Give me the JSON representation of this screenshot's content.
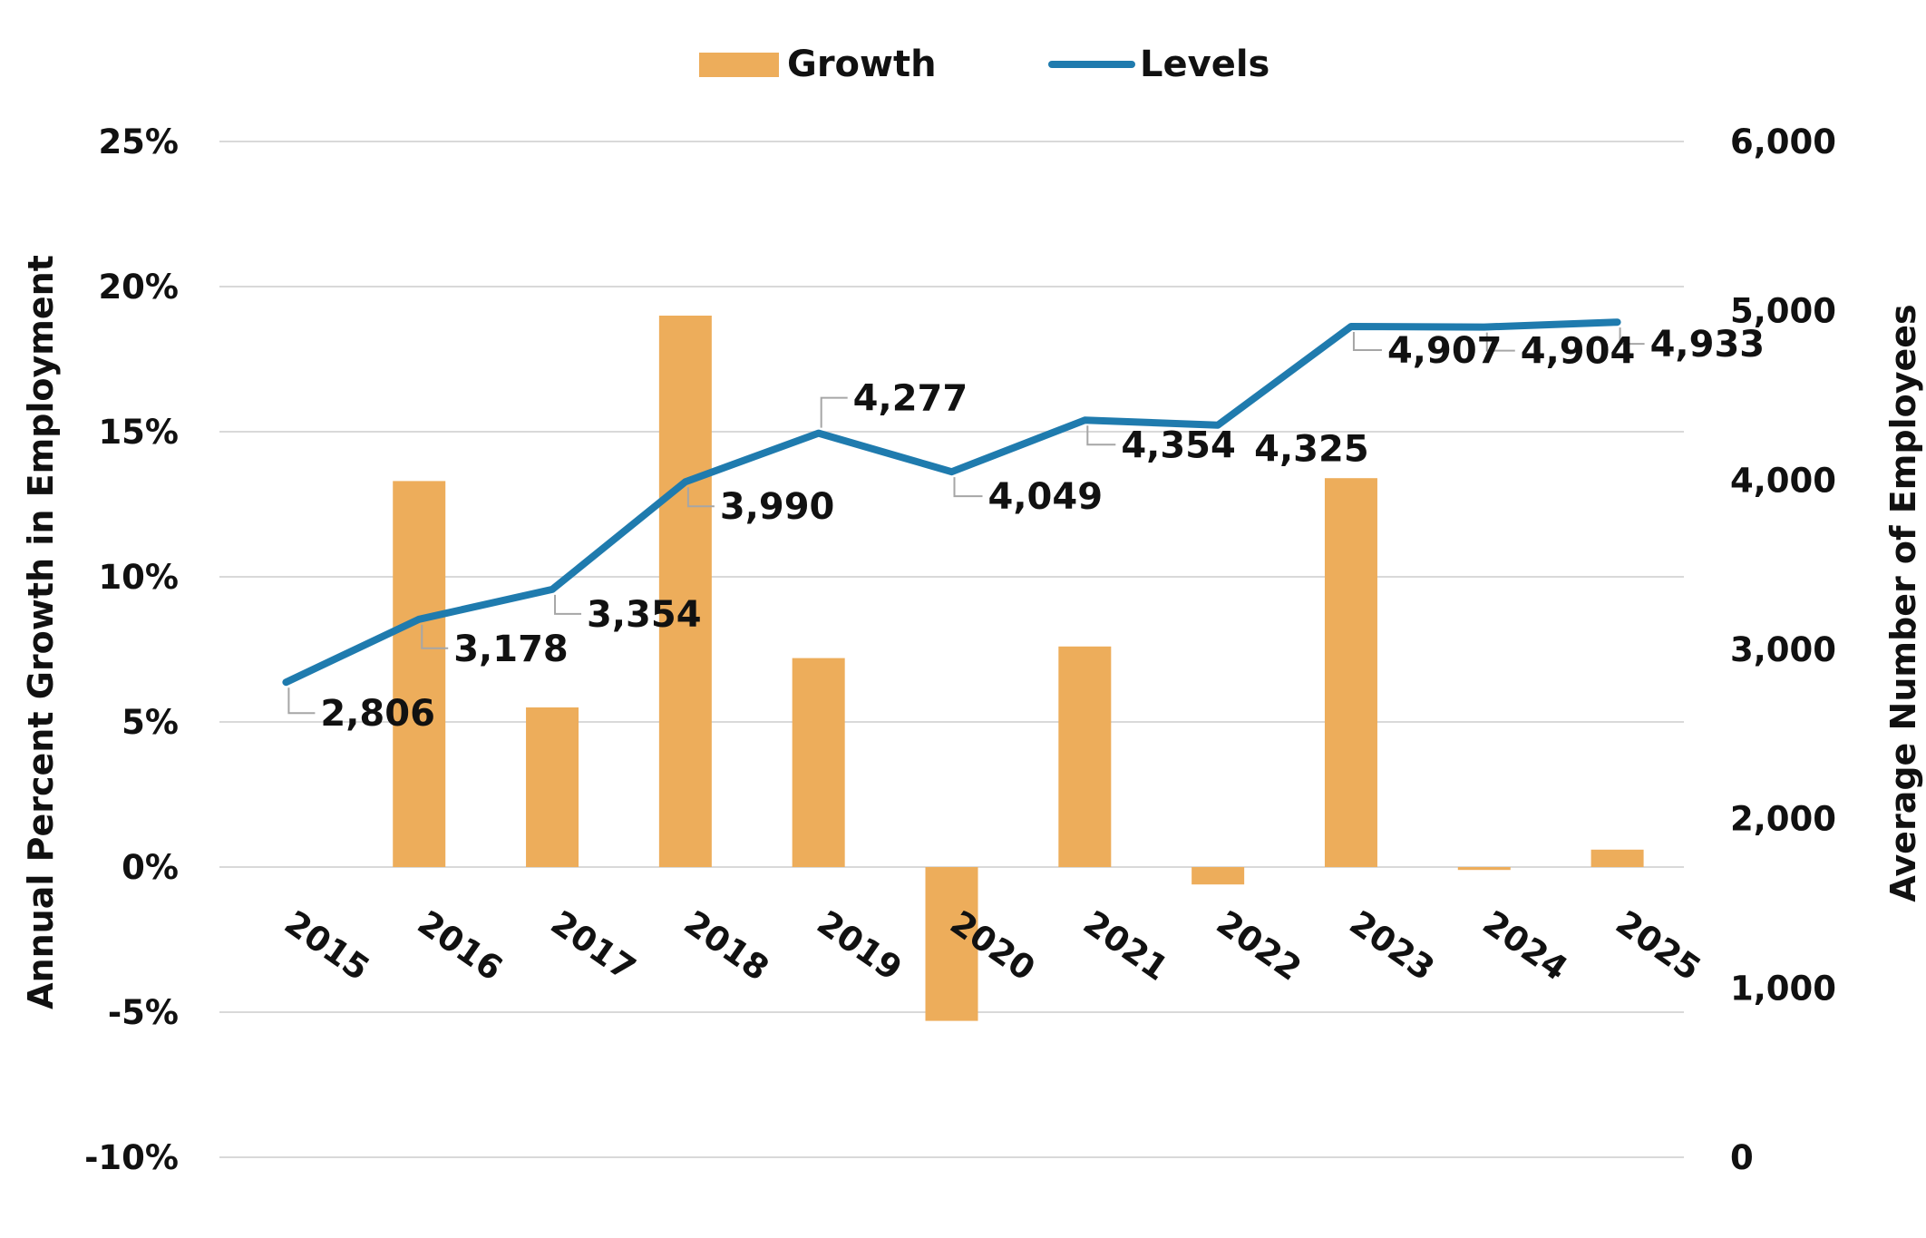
{
  "chart_data": {
    "type": "bar",
    "categories": [
      "2015",
      "2016",
      "2017",
      "2018",
      "2019",
      "2020",
      "2021",
      "2022",
      "2023",
      "2024",
      "2025"
    ],
    "series": [
      {
        "name": "Growth",
        "type": "bar",
        "axis": "left",
        "color": "#EDAD5B",
        "values": [
          null,
          13.3,
          5.5,
          19.0,
          7.2,
          -5.3,
          7.6,
          -0.6,
          13.4,
          -0.1,
          0.6
        ]
      },
      {
        "name": "Levels",
        "type": "line",
        "axis": "right",
        "color": "#1F7BAE",
        "values": [
          2806,
          3178,
          3354,
          3990,
          4277,
          4049,
          4354,
          4325,
          4907,
          4904,
          4933
        ],
        "labels": [
          "2,806",
          "3,178",
          "3,354",
          "3,990",
          "4,277",
          "4,049",
          "4,354",
          "4,325",
          "4,907",
          "4,904",
          "4,933"
        ]
      }
    ],
    "left_axis": {
      "title": "Annual Percent Growth in Employment",
      "range": [
        -10,
        25
      ],
      "ticks": [
        -10,
        -5,
        0,
        5,
        10,
        15,
        20,
        25
      ],
      "tick_labels": [
        "-10%",
        "-5%",
        "0%",
        "5%",
        "10%",
        "15%",
        "20%",
        "25%"
      ]
    },
    "right_axis": {
      "title": "Average Number of Employees",
      "range": [
        0,
        6000
      ],
      "ticks": [
        0,
        1000,
        2000,
        3000,
        4000,
        5000,
        6000
      ],
      "tick_labels": [
        "0",
        "1,000",
        "2,000",
        "3,000",
        "4,000",
        "5,000",
        "6,000"
      ]
    },
    "grid": true,
    "legend": {
      "placement": "top-center",
      "entries": [
        "Growth",
        "Levels"
      ]
    },
    "gridline_color": "#D9D9D9",
    "leader_color": "#A6A6A6"
  }
}
